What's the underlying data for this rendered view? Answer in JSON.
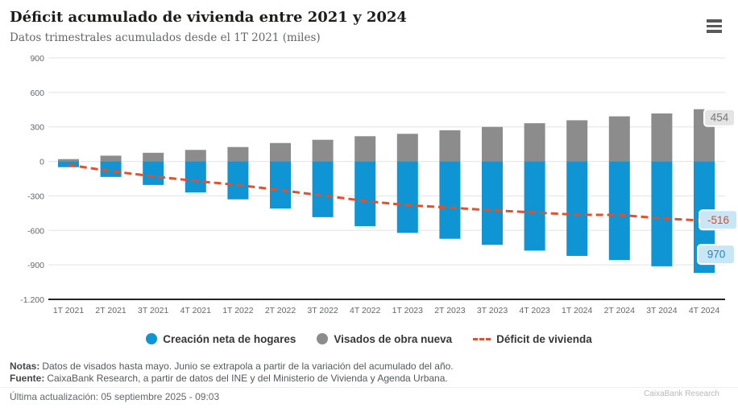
{
  "header": {
    "title": "Déficit acumulado de vivienda entre 2021 y 2024",
    "subtitle": "Datos trimestrales acumulados desde el 1T 2021 (miles)"
  },
  "chart_data": {
    "type": "bar",
    "stacked": true,
    "title": "Déficit acumulado de vivienda entre 2021 y 2024",
    "subtitle": "Datos trimestrales acumulados desde el 1T 2021 (miles)",
    "categories": [
      "1T 2021",
      "2T 2021",
      "3T 2021",
      "4T 2021",
      "1T 2022",
      "2T 2022",
      "3T 2022",
      "4T 2022",
      "1T 2023",
      "2T 2023",
      "3T 2023",
      "4T 2023",
      "1T 2024",
      "2T 2024",
      "3T 2024",
      "4T 2024"
    ],
    "series": [
      {
        "name": "Creación neta de hogares",
        "type": "bar",
        "color": "#0f95d4",
        "values": [
          -50,
          -135,
          -205,
          -270,
          -330,
          -410,
          -485,
          -563,
          -622,
          -673,
          -726,
          -776,
          -822,
          -858,
          -912,
          -970
        ]
      },
      {
        "name": "Visados de obra nueva",
        "type": "bar",
        "color": "#8c8c8c",
        "values": [
          20,
          50,
          75,
          100,
          125,
          160,
          188,
          219,
          240,
          271,
          300,
          332,
          358,
          392,
          417,
          454
        ]
      },
      {
        "name": "Déficit de vivienda",
        "type": "line",
        "style": "dashed",
        "color": "#e0512d",
        "values": [
          -30,
          -85,
          -130,
          -170,
          -205,
          -250,
          -297,
          -344,
          -382,
          -402,
          -426,
          -444,
          -464,
          -466,
          -495,
          -516
        ]
      }
    ],
    "ylim": [
      -1200,
      900
    ],
    "y_tick_values": [
      900,
      600,
      300,
      0,
      -300,
      -600,
      -900,
      -1200
    ],
    "y_tick_labels": [
      "900",
      "600",
      "300",
      "0",
      "-300",
      "-600",
      "-900",
      "-1.200"
    ],
    "grid": "horizontal",
    "legend_position": "bottom",
    "end_labels": [
      {
        "text": "454",
        "series": "Visados de obra nueva",
        "bg": "#e4e4e4",
        "color": "#75787b"
      },
      {
        "text": "-516",
        "series": "Déficit de vivienda",
        "bg": "#c9e6f6",
        "color": "#e04a2b"
      },
      {
        "text": "970",
        "series": "Creación neta de hogares",
        "bg": "#c9e6f6",
        "color": "#1789c6"
      }
    ]
  },
  "legend": {
    "items": [
      {
        "label": "Creación neta de hogares",
        "marker": "circle",
        "color": "#0f95d4"
      },
      {
        "label": "Visados de obra nueva",
        "marker": "circle",
        "color": "#8c8c8c"
      },
      {
        "label": "Déficit de vivienda",
        "marker": "dashed-line",
        "color": "#e0512d"
      }
    ]
  },
  "footer": {
    "notas_label": "Notas:",
    "notas_text": "Datos de visados hasta mayo. Junio se extrapola a partir de la variación del acumulado del año.",
    "fuente_label": "Fuente:",
    "fuente_text": "CaixaBank Research, a partir de datos del INE y del Ministerio de Vivienda y Agenda Urbana.",
    "updated": "Última actualización: 05 septiembre 2025 - 09:03",
    "brand": "CaixaBank Research"
  }
}
